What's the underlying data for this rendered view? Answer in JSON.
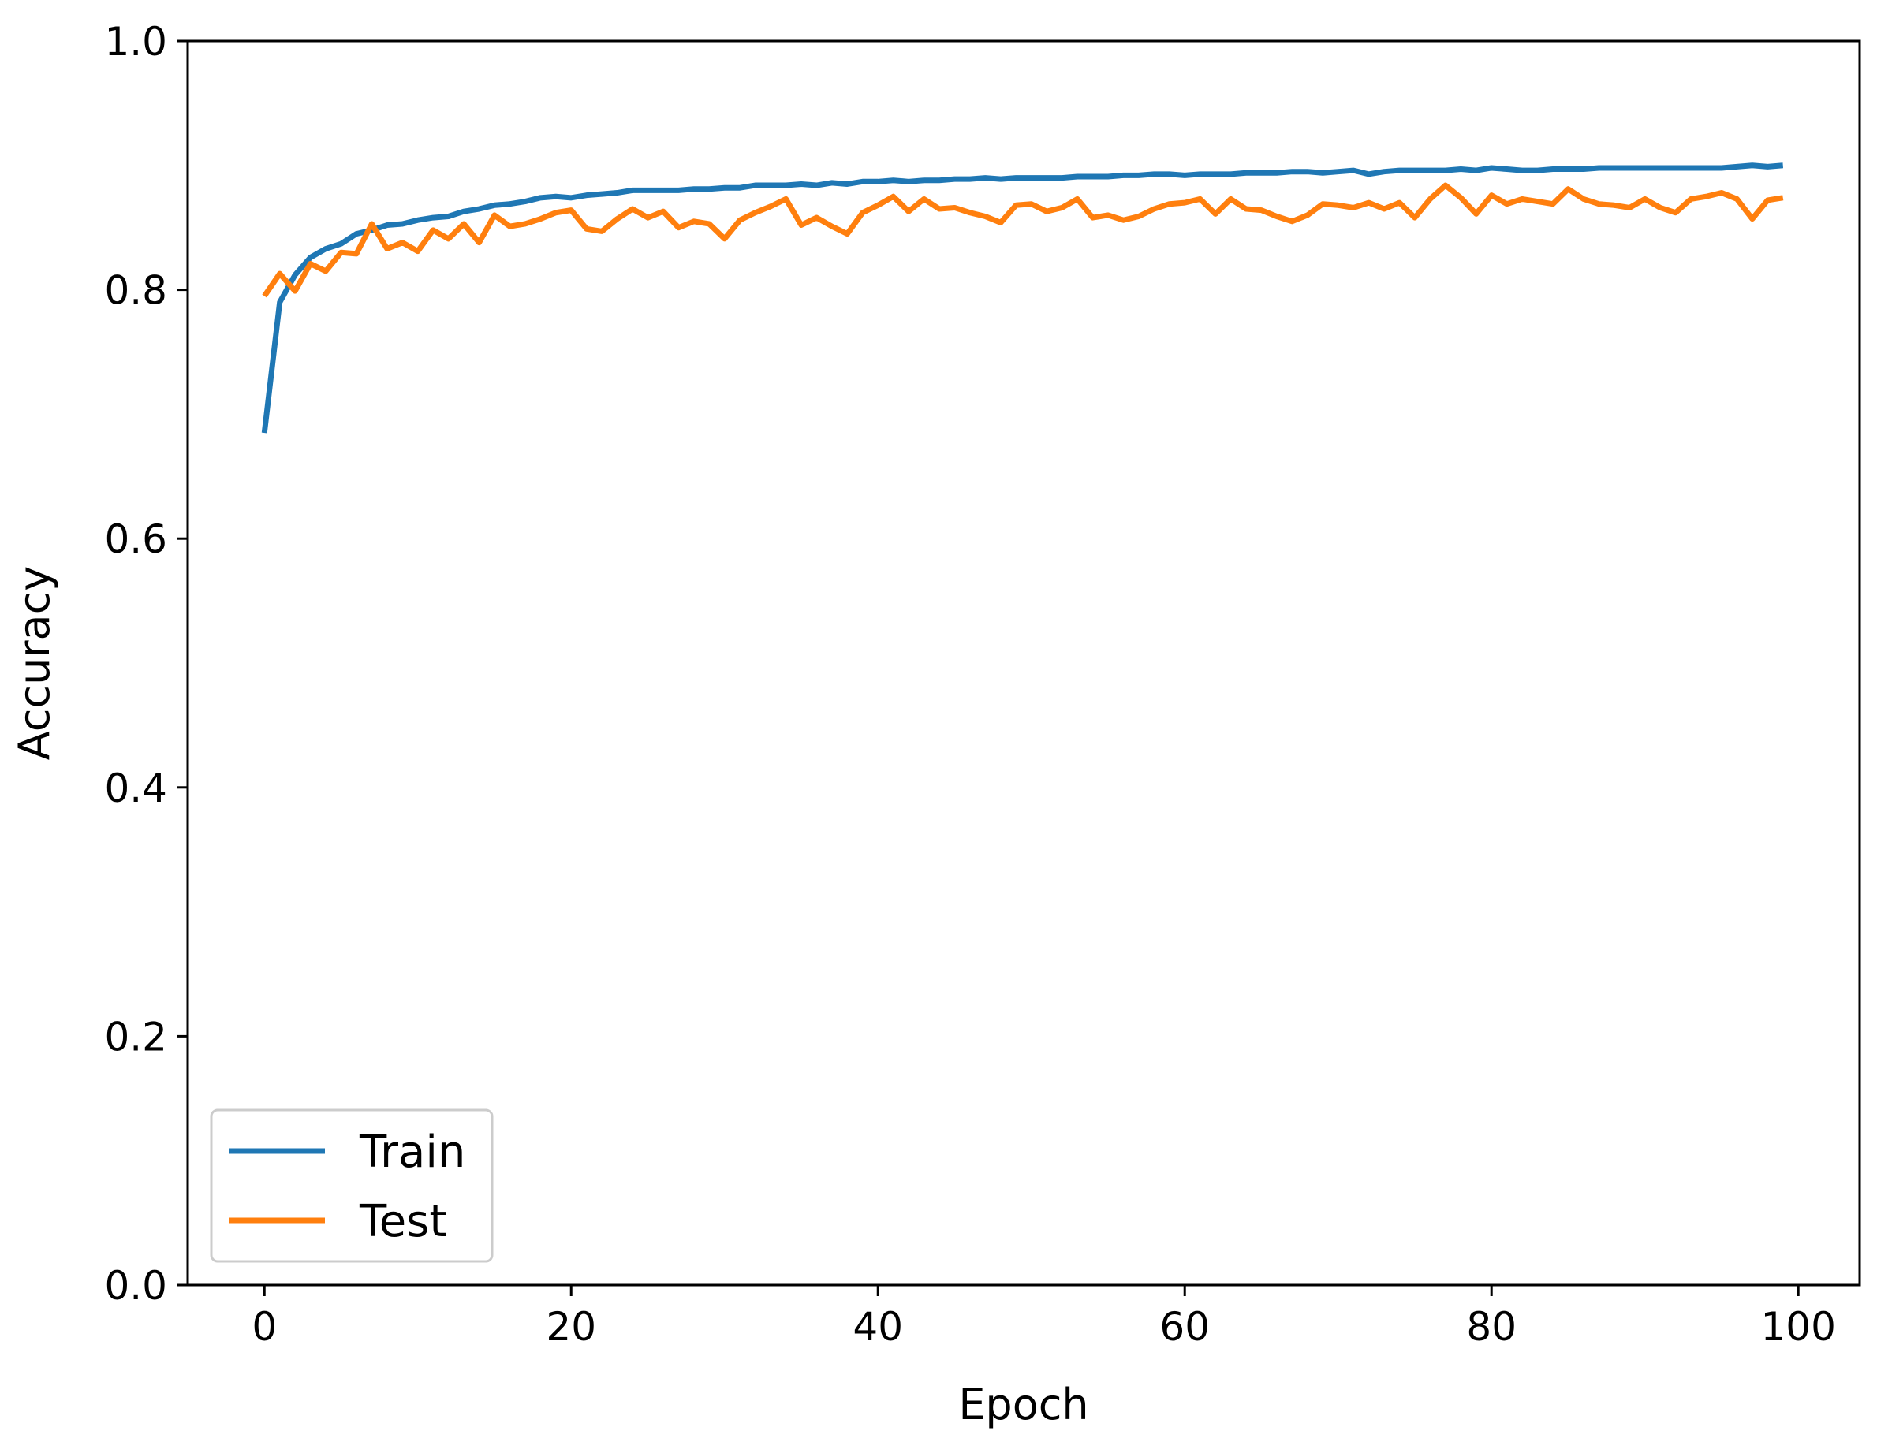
{
  "chart_data": {
    "type": "line",
    "xlabel": "Epoch",
    "ylabel": "Accuracy",
    "xlim": [
      -5,
      104
    ],
    "ylim": [
      0.0,
      1.0
    ],
    "xticks": [
      0,
      20,
      40,
      60,
      80,
      100
    ],
    "yticks": [
      0.0,
      0.2,
      0.4,
      0.6,
      0.8,
      1.0
    ],
    "xtick_labels": [
      "0",
      "20",
      "40",
      "60",
      "80",
      "100"
    ],
    "ytick_labels": [
      "0.0",
      "0.2",
      "0.4",
      "0.6",
      "0.8",
      "1.0"
    ],
    "grid": false,
    "legend_position": "lower-left",
    "x": [
      0,
      1,
      2,
      3,
      4,
      5,
      6,
      7,
      8,
      9,
      10,
      11,
      12,
      13,
      14,
      15,
      16,
      17,
      18,
      19,
      20,
      21,
      22,
      23,
      24,
      25,
      26,
      27,
      28,
      29,
      30,
      31,
      32,
      33,
      34,
      35,
      36,
      37,
      38,
      39,
      40,
      41,
      42,
      43,
      44,
      45,
      46,
      47,
      48,
      49,
      50,
      51,
      52,
      53,
      54,
      55,
      56,
      57,
      58,
      59,
      60,
      61,
      62,
      63,
      64,
      65,
      66,
      67,
      68,
      69,
      70,
      71,
      72,
      73,
      74,
      75,
      76,
      77,
      78,
      79,
      80,
      81,
      82,
      83,
      84,
      85,
      86,
      87,
      88,
      89,
      90,
      91,
      92,
      93,
      94,
      95,
      96,
      97,
      98,
      99
    ],
    "series": [
      {
        "name": "Train",
        "color": "#1f77b4",
        "values": [
          0.685,
          0.79,
          0.812,
          0.826,
          0.833,
          0.837,
          0.845,
          0.848,
          0.852,
          0.853,
          0.856,
          0.858,
          0.859,
          0.863,
          0.865,
          0.868,
          0.869,
          0.871,
          0.874,
          0.875,
          0.874,
          0.876,
          0.877,
          0.878,
          0.88,
          0.88,
          0.88,
          0.88,
          0.881,
          0.881,
          0.882,
          0.882,
          0.884,
          0.884,
          0.884,
          0.885,
          0.884,
          0.886,
          0.885,
          0.887,
          0.887,
          0.888,
          0.887,
          0.888,
          0.888,
          0.889,
          0.889,
          0.89,
          0.889,
          0.89,
          0.89,
          0.89,
          0.89,
          0.891,
          0.891,
          0.891,
          0.892,
          0.892,
          0.893,
          0.893,
          0.892,
          0.893,
          0.893,
          0.893,
          0.894,
          0.894,
          0.894,
          0.895,
          0.895,
          0.894,
          0.895,
          0.896,
          0.893,
          0.895,
          0.896,
          0.896,
          0.896,
          0.896,
          0.897,
          0.896,
          0.898,
          0.897,
          0.896,
          0.896,
          0.897,
          0.897,
          0.897,
          0.898,
          0.898,
          0.898,
          0.898,
          0.898,
          0.898,
          0.898,
          0.898,
          0.898,
          0.899,
          0.9,
          0.899,
          0.9
        ]
      },
      {
        "name": "Test",
        "color": "#ff7f0e",
        "values": [
          0.795,
          0.813,
          0.799,
          0.821,
          0.815,
          0.83,
          0.829,
          0.853,
          0.833,
          0.838,
          0.831,
          0.848,
          0.841,
          0.853,
          0.838,
          0.86,
          0.851,
          0.853,
          0.857,
          0.862,
          0.864,
          0.849,
          0.847,
          0.857,
          0.865,
          0.858,
          0.863,
          0.85,
          0.855,
          0.853,
          0.841,
          0.856,
          0.862,
          0.867,
          0.873,
          0.852,
          0.858,
          0.851,
          0.845,
          0.862,
          0.868,
          0.875,
          0.863,
          0.873,
          0.865,
          0.866,
          0.862,
          0.859,
          0.854,
          0.868,
          0.869,
          0.863,
          0.866,
          0.873,
          0.858,
          0.86,
          0.856,
          0.859,
          0.865,
          0.869,
          0.87,
          0.873,
          0.861,
          0.873,
          0.865,
          0.864,
          0.859,
          0.855,
          0.86,
          0.869,
          0.868,
          0.866,
          0.87,
          0.865,
          0.87,
          0.858,
          0.873,
          0.884,
          0.874,
          0.861,
          0.876,
          0.869,
          0.873,
          0.871,
          0.869,
          0.881,
          0.873,
          0.869,
          0.868,
          0.866,
          0.873,
          0.866,
          0.862,
          0.873,
          0.875,
          0.878,
          0.873,
          0.857,
          0.872,
          0.874
        ]
      }
    ]
  }
}
